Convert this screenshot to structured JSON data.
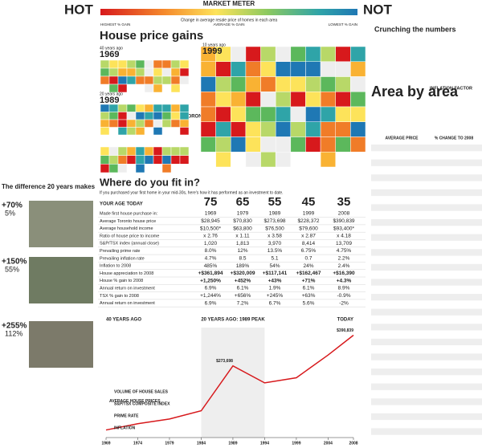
{
  "header": {
    "hot": "HOT",
    "title": "MARKET METER",
    "subtitle": "Change in average resale price of homes in each area",
    "not": "NOT",
    "scale_labels": [
      "HIGHEST % GAIN",
      "AVERAGE % GAIN",
      "LOWEST % GAIN"
    ]
  },
  "map": {
    "title": "House price gains",
    "panels": [
      {
        "label": "40 years ago",
        "year": "1969"
      },
      {
        "label": "20 years ago",
        "year": "1989"
      },
      {
        "label": "10 years ago",
        "year": "1999"
      }
    ],
    "city": "TORONTO"
  },
  "crunching": {
    "title": "Crunching the numbers"
  },
  "area": {
    "title": "Area by area",
    "inflation_factor": "INFLATION FACTOR",
    "columns": [
      "AVERAGE PRICE",
      "% CHANGE TO 2008"
    ]
  },
  "difference": {
    "title": "The difference 20 years makes",
    "items": [
      {
        "gain": "+70%",
        "adjusted": "5%"
      },
      {
        "gain": "+150%",
        "adjusted": "55%"
      },
      {
        "gain": "+255%",
        "adjusted": "112%"
      }
    ]
  },
  "fit": {
    "title": "Where do you fit in?",
    "subtitle": "If you purchased your first home in your mid-30s, here's how it has performed as an investment to date.",
    "header": [
      "YOUR AGE TODAY",
      "75",
      "65",
      "55",
      "45",
      "35"
    ],
    "rows": [
      [
        "Made first house purchase in:",
        "1969",
        "1979",
        "1989",
        "1999",
        "2008"
      ],
      [
        "Average Toronto house price",
        "$28,945",
        "$70,830",
        "$273,698",
        "$228,372",
        "$390,839"
      ],
      [
        "Average household income",
        "$10,500*",
        "$63,800",
        "$76,500",
        "$79,600",
        "$93,400*"
      ],
      [
        "Ratio of house price to income",
        "x 2.76",
        "x 1.11",
        "x 3.58",
        "x 2.87",
        "x 4.18"
      ],
      [
        "S&P/TSX index (annual close)",
        "1,020",
        "1,813",
        "3,970",
        "8,414",
        "13,709"
      ],
      [
        "Prevailing prime rate",
        "8.0%",
        "12%",
        "13.5%",
        "6.75%",
        "4.75%"
      ],
      [
        "Prevailing inflation rate",
        "4.7%",
        "8.5",
        "5.1",
        "0.7",
        "2.2%"
      ],
      [
        "Inflation to 2008",
        "485%",
        "189%",
        "54%",
        "24%",
        "2.4%"
      ],
      [
        "House appreciation to 2008",
        "+$361,894",
        "+$320,009",
        "+$117,141",
        "+$162,467",
        "+$16,390"
      ],
      [
        "House % gain to 2008",
        "+1,250%",
        "+452%",
        "+43%",
        "+71%",
        "+4.3%"
      ],
      [
        "Annual return on investment",
        "6.9%",
        "6.1%",
        "1.9%",
        "6.1%",
        "8.9%"
      ],
      [
        "TSX % gain to 2008",
        "+1,244%",
        "+656%",
        "+245%",
        "+63%",
        "-0.9%"
      ],
      [
        "Annual return on investment",
        "6.9%",
        "7.2%",
        "6.7%",
        "5.6%",
        "-2%"
      ]
    ]
  },
  "chart_data": {
    "type": "line",
    "labels": [
      "40 YEARS AGO",
      "20 YEARS AGO: 1989 PEAK",
      "TODAY"
    ],
    "series_name": "AVERAGE HOUSE PRICES",
    "annotations": [
      "VOLUME OF HOUSE SALES",
      "S&P/TSX COMPOSITE INDEX",
      "PRIME RATE",
      "INFLATION"
    ],
    "color": "#d7191c",
    "x": [
      1969,
      1974,
      1979,
      1984,
      1989,
      1994,
      1999,
      2004,
      2008
    ],
    "values": [
      28945,
      52806,
      70830,
      102318,
      273698,
      208921,
      228372,
      315231,
      390839
    ],
    "value_labels": [
      null,
      null,
      null,
      null,
      "$273,698",
      null,
      null,
      null,
      "$390,839"
    ],
    "xlim": [
      1969,
      2008
    ],
    "xticks": [
      1969,
      1974,
      1979,
      1984,
      1989,
      1994,
      1999,
      2004,
      2008
    ],
    "ylim": [
      0,
      420000
    ]
  }
}
